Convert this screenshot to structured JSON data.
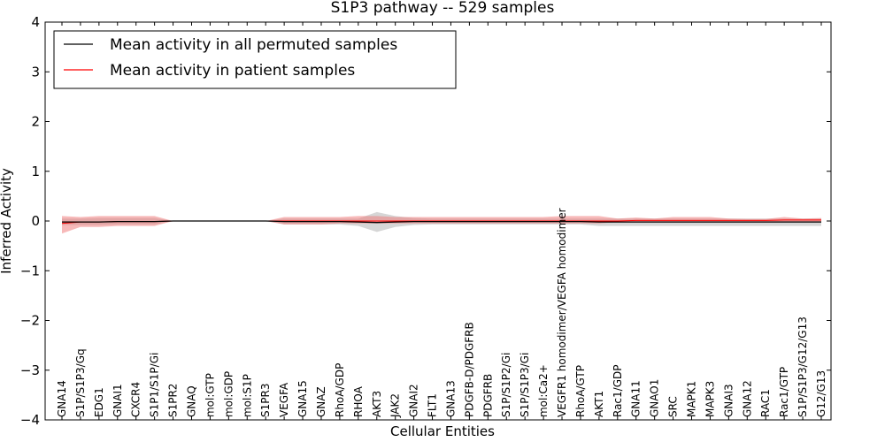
{
  "chart_data": {
    "type": "line",
    "title": "S1P3 pathway -- 529 samples",
    "xlabel": "Cellular Entities",
    "ylabel": "Inferred Activity",
    "ylim": [
      -4,
      4
    ],
    "yticks": [
      -4,
      -3,
      -2,
      -1,
      0,
      1,
      2,
      3,
      4
    ],
    "ytick_labels": [
      "−4",
      "−3",
      "−2",
      "−1",
      "0",
      "1",
      "2",
      "3",
      "4"
    ],
    "legend_position": "top-left",
    "categories": [
      "GNA14",
      "S1P/S1P3/Gq",
      "EDG1",
      "GNAI1",
      "CXCR4",
      "S1P1/S1P/Gi",
      "S1PR2",
      "GNAQ",
      "mol:GTP",
      "mol:GDP",
      "mol:S1P",
      "S1PR3",
      "VEGFA",
      "GNA15",
      "GNAZ",
      "RhoA/GDP",
      "RHOA",
      "AKT3",
      "JAK2",
      "GNAI2",
      "FLT1",
      "GNA13",
      "PDGFB-D/PDGFRB",
      "PDGFRB",
      "S1P/S1P2/Gi",
      "S1P/S1P3/Gi",
      "mol:Ca2+",
      "VEGFR1 homodimer/VEGFA homodimer",
      "RhoA/GTP",
      "AKT1",
      "Rac1/GDP",
      "GNA11",
      "GNAO1",
      "SRC",
      "MAPK1",
      "MAPK3",
      "GNAI3",
      "GNA12",
      "RAC1",
      "Rac1/GTP",
      "S1P/S1P3/G12/G13",
      "G12/G13"
    ],
    "series": [
      {
        "name": "Mean activity in all permuted samples",
        "color": "#000000",
        "band_color": "#bbbbbb",
        "values": [
          -0.02,
          -0.02,
          -0.02,
          -0.01,
          -0.01,
          -0.01,
          0,
          0,
          0,
          0,
          0,
          0,
          -0.01,
          -0.01,
          -0.01,
          -0.01,
          -0.02,
          -0.03,
          -0.02,
          -0.01,
          -0.01,
          -0.01,
          -0.01,
          -0.01,
          -0.01,
          -0.01,
          -0.01,
          -0.01,
          -0.01,
          -0.02,
          -0.02,
          -0.02,
          -0.02,
          -0.02,
          -0.02,
          -0.02,
          -0.02,
          -0.02,
          -0.02,
          -0.02,
          -0.02,
          -0.02
        ],
        "upper": [
          0.05,
          0.05,
          0.06,
          0.06,
          0.06,
          0.06,
          0,
          0,
          0,
          0,
          0,
          0,
          0.05,
          0.05,
          0.05,
          0.05,
          0.05,
          0.18,
          0.1,
          0.06,
          0.05,
          0.05,
          0.05,
          0.05,
          0.05,
          0.05,
          0.05,
          0.05,
          0.05,
          0.05,
          0.05,
          0.05,
          0.05,
          0.05,
          0.05,
          0.05,
          0.05,
          0.05,
          0.05,
          0.05,
          0.05,
          0.05
        ],
        "lower": [
          -0.08,
          -0.08,
          -0.08,
          -0.07,
          -0.07,
          -0.07,
          0,
          0,
          0,
          0,
          0,
          0,
          -0.07,
          -0.07,
          -0.07,
          -0.07,
          -0.1,
          -0.22,
          -0.12,
          -0.08,
          -0.07,
          -0.07,
          -0.07,
          -0.07,
          -0.07,
          -0.07,
          -0.07,
          -0.07,
          -0.07,
          -0.1,
          -0.1,
          -0.1,
          -0.1,
          -0.1,
          -0.1,
          -0.1,
          -0.1,
          -0.1,
          -0.1,
          -0.1,
          -0.1,
          -0.1
        ]
      },
      {
        "name": "Mean activity in patient samples",
        "color": "#ff0000",
        "band_color": "#f08080",
        "values": [
          -0.05,
          -0.02,
          -0.02,
          -0.01,
          -0.01,
          -0.01,
          0,
          0,
          0,
          0,
          0,
          0,
          0,
          0,
          0,
          0,
          0,
          0,
          0,
          0,
          0,
          0,
          0,
          0,
          0,
          0,
          0,
          0,
          0,
          0,
          0,
          0.01,
          0.01,
          0.01,
          0.01,
          0.01,
          0.01,
          0.01,
          0.01,
          0.02,
          0.02,
          0.02
        ],
        "upper": [
          0.1,
          0.08,
          0.1,
          0.1,
          0.1,
          0.1,
          0,
          0,
          0,
          0,
          0,
          0,
          0.08,
          0.08,
          0.08,
          0.08,
          0.1,
          0.1,
          0.08,
          0.08,
          0.08,
          0.08,
          0.08,
          0.08,
          0.08,
          0.08,
          0.08,
          0.1,
          0.1,
          0.1,
          0.05,
          0.07,
          0.05,
          0.08,
          0.08,
          0.08,
          0.05,
          0.04,
          0.04,
          0.08,
          0.05,
          0.06
        ],
        "lower": [
          -0.25,
          -0.12,
          -0.12,
          -0.1,
          -0.1,
          -0.1,
          0,
          0,
          0,
          0,
          0,
          0,
          -0.07,
          -0.07,
          -0.07,
          -0.05,
          -0.05,
          -0.05,
          -0.05,
          -0.05,
          -0.05,
          -0.05,
          -0.05,
          -0.05,
          -0.05,
          -0.05,
          -0.05,
          -0.05,
          -0.05,
          -0.05,
          -0.02,
          -0.02,
          -0.02,
          -0.02,
          -0.02,
          -0.02,
          -0.02,
          -0.01,
          -0.01,
          -0.01,
          -0.01,
          -0.01
        ]
      }
    ]
  }
}
